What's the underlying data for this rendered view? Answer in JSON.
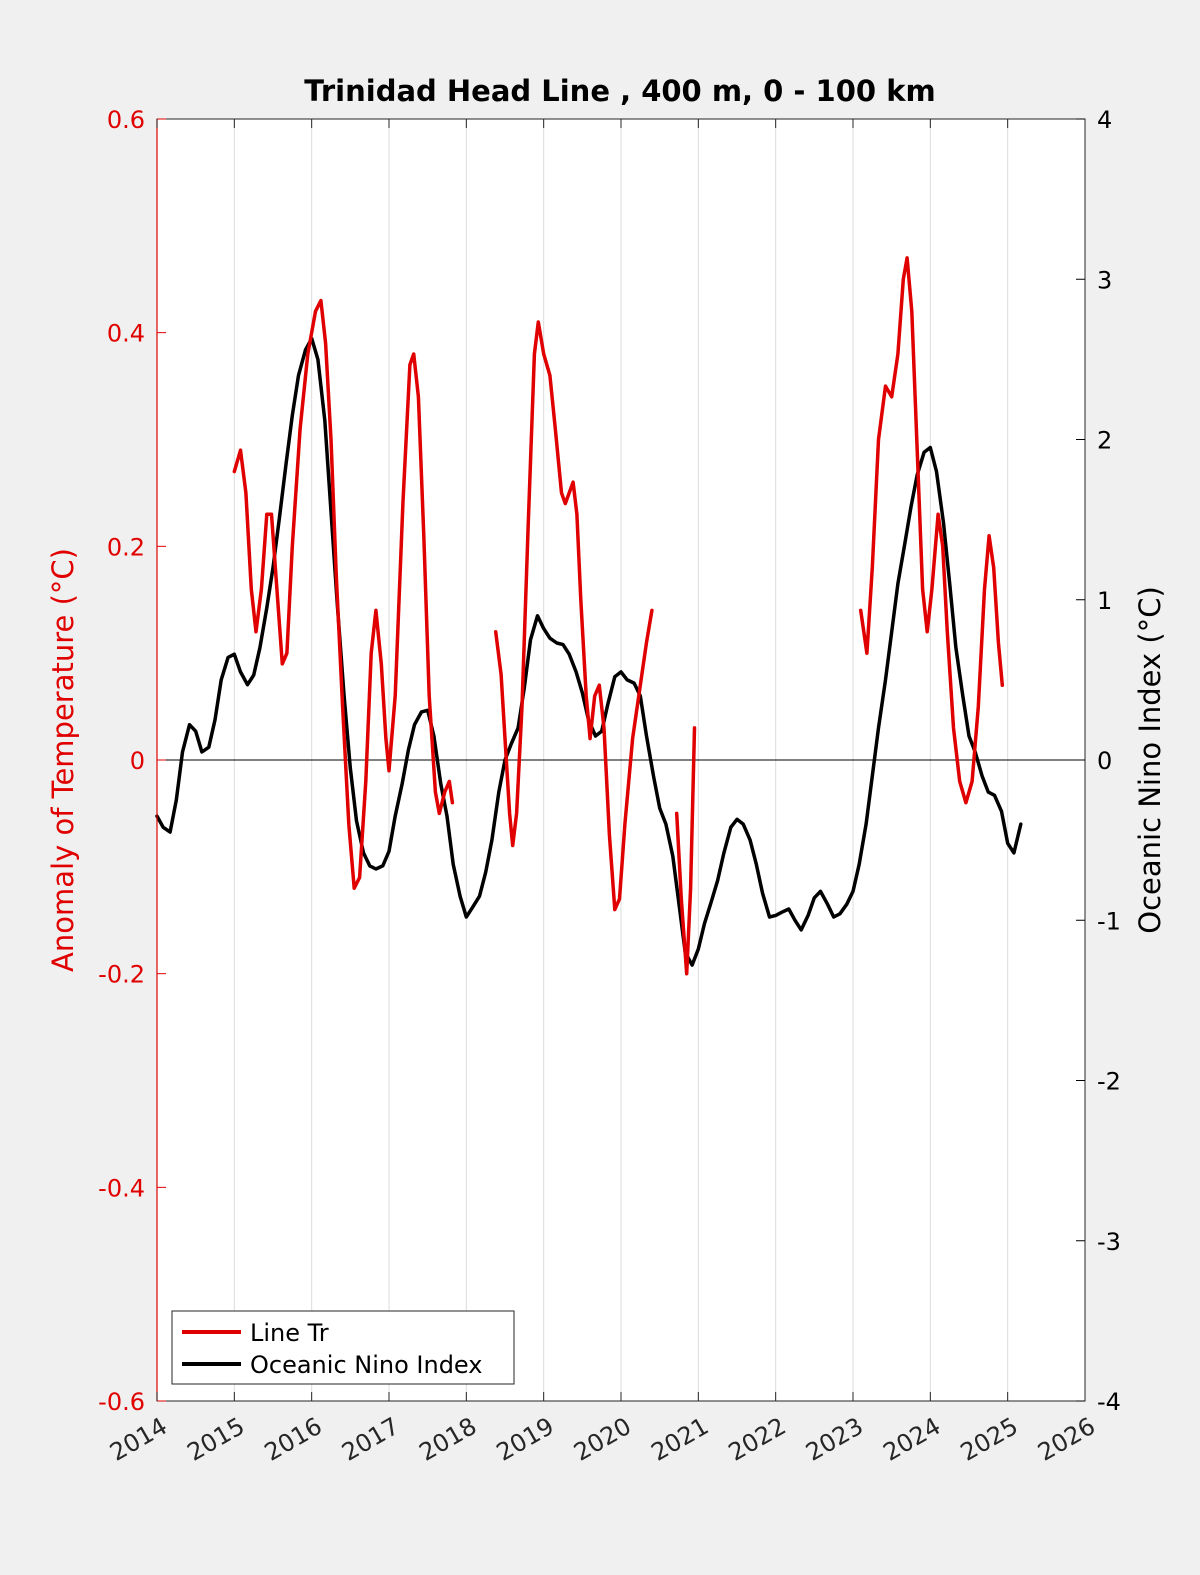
{
  "colors": {
    "background": "#f0f0f0",
    "plot_background": "#ffffff",
    "line_tr": "#e00000",
    "oni": "#000000",
    "grid": "#dcdcdc",
    "left_axis": "#e00000",
    "right_axis": "#000000"
  },
  "chart_data": {
    "type": "line",
    "title": "Trinidad Head Line , 400 m, 0 - 100 km",
    "xlabel": "",
    "ylabel_left": "Anomaly of Temperature (°C)",
    "ylabel_right": "Oceanic Nino Index (°C)",
    "xlim": [
      2014,
      2026
    ],
    "ylim_left": [
      -0.6,
      0.6
    ],
    "ylim_right": [
      -4,
      4
    ],
    "x_ticks": [
      "2014",
      "2015",
      "2016",
      "2017",
      "2018",
      "2019",
      "2020",
      "2021",
      "2022",
      "2023",
      "2024",
      "2025",
      "2026"
    ],
    "y_ticks_left": [
      "0.6",
      "0.4",
      "0.2",
      "0",
      "-0.2",
      "-0.4",
      "-0.6"
    ],
    "y_ticks_right": [
      "4",
      "3",
      "2",
      "1",
      "0",
      "-1",
      "-2",
      "-3",
      "-4"
    ],
    "grid": "vertical",
    "zero_line": true,
    "legend_position": "bottom-left",
    "series": [
      {
        "name": "Line Tr",
        "axis": "left",
        "segments": [
          [
            [
              2015.0,
              0.27
            ],
            [
              2015.08,
              0.29
            ],
            [
              2015.15,
              0.25
            ],
            [
              2015.22,
              0.16
            ],
            [
              2015.28,
              0.12
            ],
            [
              2015.35,
              0.16
            ],
            [
              2015.42,
              0.23
            ],
            [
              2015.48,
              0.23
            ],
            [
              2015.55,
              0.16
            ],
            [
              2015.62,
              0.09
            ],
            [
              2015.68,
              0.1
            ],
            [
              2015.75,
              0.2
            ],
            [
              2015.85,
              0.31
            ],
            [
              2015.95,
              0.38
            ],
            [
              2016.05,
              0.42
            ],
            [
              2016.12,
              0.43
            ],
            [
              2016.18,
              0.39
            ],
            [
              2016.25,
              0.3
            ],
            [
              2016.32,
              0.17
            ],
            [
              2016.4,
              0.05
            ],
            [
              2016.48,
              -0.06
            ],
            [
              2016.55,
              -0.12
            ],
            [
              2016.62,
              -0.11
            ],
            [
              2016.7,
              -0.02
            ],
            [
              2016.77,
              0.1
            ],
            [
              2016.83,
              0.14
            ],
            [
              2016.9,
              0.09
            ],
            [
              2016.96,
              0.02
            ],
            [
              2017.0,
              -0.01
            ],
            [
              2017.08,
              0.06
            ],
            [
              2017.18,
              0.24
            ],
            [
              2017.27,
              0.37
            ],
            [
              2017.32,
              0.38
            ],
            [
              2017.38,
              0.34
            ],
            [
              2017.45,
              0.21
            ],
            [
              2017.52,
              0.06
            ],
            [
              2017.6,
              -0.03
            ],
            [
              2017.65,
              -0.05
            ],
            [
              2017.72,
              -0.03
            ],
            [
              2017.78,
              -0.02
            ],
            [
              2017.82,
              -0.04
            ]
          ],
          [
            [
              2018.38,
              0.12
            ],
            [
              2018.45,
              0.08
            ],
            [
              2018.5,
              0.02
            ],
            [
              2018.56,
              -0.05
            ],
            [
              2018.6,
              -0.08
            ],
            [
              2018.65,
              -0.05
            ],
            [
              2018.72,
              0.05
            ],
            [
              2018.8,
              0.22
            ],
            [
              2018.88,
              0.38
            ],
            [
              2018.93,
              0.41
            ],
            [
              2019.0,
              0.38
            ],
            [
              2019.08,
              0.36
            ],
            [
              2019.15,
              0.31
            ],
            [
              2019.23,
              0.25
            ],
            [
              2019.28,
              0.24
            ],
            [
              2019.33,
              0.25
            ],
            [
              2019.38,
              0.26
            ],
            [
              2019.43,
              0.23
            ],
            [
              2019.48,
              0.15
            ],
            [
              2019.55,
              0.06
            ],
            [
              2019.6,
              0.02
            ],
            [
              2019.66,
              0.06
            ],
            [
              2019.72,
              0.07
            ],
            [
              2019.78,
              0.03
            ],
            [
              2019.85,
              -0.07
            ],
            [
              2019.92,
              -0.14
            ],
            [
              2019.98,
              -0.13
            ],
            [
              2020.05,
              -0.06
            ],
            [
              2020.15,
              0.02
            ],
            [
              2020.25,
              0.07
            ],
            [
              2020.33,
              0.11
            ],
            [
              2020.4,
              0.14
            ]
          ],
          [
            [
              2020.72,
              -0.05
            ],
            [
              2020.78,
              -0.13
            ],
            [
              2020.85,
              -0.2
            ],
            [
              2020.9,
              -0.12
            ],
            [
              2020.95,
              0.03
            ]
          ],
          [
            [
              2023.1,
              0.14
            ],
            [
              2023.18,
              0.1
            ],
            [
              2023.25,
              0.18
            ],
            [
              2023.33,
              0.3
            ],
            [
              2023.42,
              0.35
            ],
            [
              2023.5,
              0.34
            ],
            [
              2023.58,
              0.38
            ],
            [
              2023.65,
              0.45
            ],
            [
              2023.7,
              0.47
            ],
            [
              2023.76,
              0.42
            ],
            [
              2023.83,
              0.29
            ],
            [
              2023.9,
              0.16
            ],
            [
              2023.96,
              0.12
            ],
            [
              2024.02,
              0.16
            ],
            [
              2024.1,
              0.23
            ],
            [
              2024.16,
              0.2
            ],
            [
              2024.22,
              0.12
            ],
            [
              2024.3,
              0.03
            ],
            [
              2024.38,
              -0.02
            ],
            [
              2024.46,
              -0.04
            ],
            [
              2024.54,
              -0.02
            ],
            [
              2024.62,
              0.05
            ],
            [
              2024.7,
              0.16
            ],
            [
              2024.76,
              0.21
            ],
            [
              2024.82,
              0.18
            ],
            [
              2024.88,
              0.11
            ],
            [
              2024.93,
              0.07
            ]
          ]
        ]
      },
      {
        "name": "Oceanic Nino Index",
        "axis": "right",
        "segments": [
          [
            [
              2014.0,
              -0.35
            ],
            [
              2014.08,
              -0.42
            ],
            [
              2014.17,
              -0.45
            ],
            [
              2014.25,
              -0.25
            ],
            [
              2014.33,
              0.05
            ],
            [
              2014.42,
              0.22
            ],
            [
              2014.5,
              0.18
            ],
            [
              2014.58,
              0.05
            ],
            [
              2014.67,
              0.08
            ],
            [
              2014.75,
              0.25
            ],
            [
              2014.83,
              0.5
            ],
            [
              2014.92,
              0.64
            ],
            [
              2015.0,
              0.66
            ],
            [
              2015.08,
              0.55
            ],
            [
              2015.17,
              0.47
            ],
            [
              2015.25,
              0.53
            ],
            [
              2015.33,
              0.7
            ],
            [
              2015.42,
              0.95
            ],
            [
              2015.5,
              1.2
            ],
            [
              2015.58,
              1.5
            ],
            [
              2015.67,
              1.85
            ],
            [
              2015.75,
              2.15
            ],
            [
              2015.83,
              2.4
            ],
            [
              2015.92,
              2.56
            ],
            [
              2016.0,
              2.63
            ],
            [
              2016.08,
              2.5
            ],
            [
              2016.17,
              2.12
            ],
            [
              2016.25,
              1.55
            ],
            [
              2016.33,
              0.98
            ],
            [
              2016.42,
              0.4
            ],
            [
              2016.5,
              -0.05
            ],
            [
              2016.58,
              -0.38
            ],
            [
              2016.67,
              -0.58
            ],
            [
              2016.75,
              -0.66
            ],
            [
              2016.83,
              -0.68
            ],
            [
              2016.92,
              -0.66
            ],
            [
              2017.0,
              -0.57
            ],
            [
              2017.08,
              -0.35
            ],
            [
              2017.17,
              -0.15
            ],
            [
              2017.25,
              0.06
            ],
            [
              2017.33,
              0.22
            ],
            [
              2017.42,
              0.3
            ],
            [
              2017.5,
              0.31
            ],
            [
              2017.58,
              0.15
            ],
            [
              2017.67,
              -0.15
            ],
            [
              2017.75,
              -0.35
            ],
            [
              2017.83,
              -0.65
            ],
            [
              2017.92,
              -0.85
            ],
            [
              2018.0,
              -0.98
            ],
            [
              2018.08,
              -0.92
            ],
            [
              2018.17,
              -0.85
            ],
            [
              2018.25,
              -0.7
            ],
            [
              2018.33,
              -0.5
            ],
            [
              2018.42,
              -0.2
            ],
            [
              2018.5,
              0.0
            ],
            [
              2018.58,
              0.1
            ],
            [
              2018.67,
              0.2
            ],
            [
              2018.75,
              0.45
            ],
            [
              2018.83,
              0.75
            ],
            [
              2018.92,
              0.9
            ],
            [
              2019.0,
              0.82
            ],
            [
              2019.08,
              0.76
            ],
            [
              2019.17,
              0.73
            ],
            [
              2019.25,
              0.72
            ],
            [
              2019.33,
              0.66
            ],
            [
              2019.42,
              0.55
            ],
            [
              2019.5,
              0.42
            ],
            [
              2019.58,
              0.25
            ],
            [
              2019.67,
              0.15
            ],
            [
              2019.75,
              0.18
            ],
            [
              2019.83,
              0.35
            ],
            [
              2019.92,
              0.52
            ],
            [
              2020.0,
              0.55
            ],
            [
              2020.08,
              0.5
            ],
            [
              2020.17,
              0.48
            ],
            [
              2020.25,
              0.4
            ],
            [
              2020.33,
              0.15
            ],
            [
              2020.42,
              -0.1
            ],
            [
              2020.5,
              -0.3
            ],
            [
              2020.58,
              -0.4
            ],
            [
              2020.67,
              -0.6
            ],
            [
              2020.75,
              -0.9
            ],
            [
              2020.83,
              -1.2
            ],
            [
              2020.92,
              -1.28
            ],
            [
              2021.0,
              -1.18
            ],
            [
              2021.08,
              -1.02
            ],
            [
              2021.17,
              -0.88
            ],
            [
              2021.25,
              -0.75
            ],
            [
              2021.33,
              -0.58
            ],
            [
              2021.42,
              -0.42
            ],
            [
              2021.5,
              -0.37
            ],
            [
              2021.58,
              -0.4
            ],
            [
              2021.67,
              -0.5
            ],
            [
              2021.75,
              -0.65
            ],
            [
              2021.83,
              -0.83
            ],
            [
              2021.92,
              -0.98
            ],
            [
              2022.0,
              -0.97
            ],
            [
              2022.08,
              -0.95
            ],
            [
              2022.17,
              -0.93
            ],
            [
              2022.25,
              -1.0
            ],
            [
              2022.33,
              -1.06
            ],
            [
              2022.42,
              -0.97
            ],
            [
              2022.5,
              -0.86
            ],
            [
              2022.58,
              -0.82
            ],
            [
              2022.67,
              -0.9
            ],
            [
              2022.75,
              -0.98
            ],
            [
              2022.83,
              -0.96
            ],
            [
              2022.92,
              -0.9
            ],
            [
              2023.0,
              -0.82
            ],
            [
              2023.08,
              -0.65
            ],
            [
              2023.17,
              -0.4
            ],
            [
              2023.25,
              -0.1
            ],
            [
              2023.33,
              0.2
            ],
            [
              2023.42,
              0.5
            ],
            [
              2023.5,
              0.8
            ],
            [
              2023.58,
              1.1
            ],
            [
              2023.67,
              1.35
            ],
            [
              2023.75,
              1.58
            ],
            [
              2023.83,
              1.78
            ],
            [
              2023.92,
              1.92
            ],
            [
              2024.0,
              1.95
            ],
            [
              2024.08,
              1.8
            ],
            [
              2024.17,
              1.48
            ],
            [
              2024.25,
              1.1
            ],
            [
              2024.33,
              0.7
            ],
            [
              2024.42,
              0.4
            ],
            [
              2024.5,
              0.15
            ],
            [
              2024.58,
              0.05
            ],
            [
              2024.67,
              -0.1
            ],
            [
              2024.75,
              -0.2
            ],
            [
              2024.83,
              -0.22
            ],
            [
              2024.92,
              -0.32
            ],
            [
              2025.0,
              -0.52
            ],
            [
              2025.08,
              -0.58
            ],
            [
              2025.17,
              -0.4
            ]
          ]
        ]
      }
    ]
  }
}
